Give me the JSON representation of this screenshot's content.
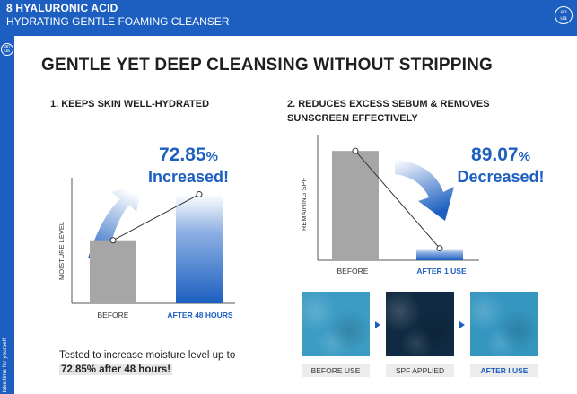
{
  "header": {
    "product_line": "8 HYALURONIC ACID",
    "product_name": "HYDRATING GENTLE FOAMING CLEANSER",
    "logo_top": "an",
    "logo_bottom": "ua"
  },
  "sidebar": {
    "logo_top": "an",
    "logo_bottom": "ua",
    "tagline": "take time for yourself"
  },
  "main_title": "GENTLE YET DEEP CLEANSING WITHOUT STRIPPING",
  "section1": {
    "title": "1. KEEPS SKIN WELL-HYDRATED",
    "y_label": "MOISTURE LEVEL",
    "stat_number": "72.85",
    "stat_unit": "%",
    "stat_word": "Increased!",
    "note_line1": "Tested to increase moisture level up to",
    "note_line2": "72.85% after 48 hours!"
  },
  "section2": {
    "title_line1": "2. REDUCES EXCESS SEBUM & REMOVES",
    "title_line2": "SUNSCREEN EFFECTIVELY",
    "y_label": "REMAINING SPF",
    "stat_number": "89.07",
    "stat_unit": "%",
    "stat_word": "Decreased!"
  },
  "chart_data": [
    {
      "type": "bar",
      "title": "1. KEEPS SKIN WELL-HYDRATED",
      "ylabel": "MOISTURE LEVEL",
      "categories": [
        "BEFORE",
        "AFTER 48 HOURS"
      ],
      "values": [
        100,
        172.85
      ],
      "ylim": [
        0,
        185
      ],
      "bar_colors": [
        "#a6a6a6",
        "#1c5fc0"
      ]
    },
    {
      "type": "bar",
      "title": "2. REDUCES EXCESS SEBUM & REMOVES SUNSCREEN EFFECTIVELY",
      "ylabel": "REMAINING SPF",
      "categories": [
        "BEFORE",
        "AFTER 1 USE"
      ],
      "values": [
        100,
        10.93
      ],
      "ylim": [
        0,
        110
      ],
      "bar_colors": [
        "#a6a6a6",
        "#1c5fc0"
      ]
    }
  ],
  "swatches": [
    {
      "label": "BEFORE USE",
      "color": "#3c9cc4"
    },
    {
      "label": "SPF APPLIED",
      "color": "#0f2a42"
    },
    {
      "label": "AFTER I USE",
      "color": "#3596c0"
    }
  ],
  "colors": {
    "brand": "#1c5fc0",
    "bar_before": "#a6a6a6"
  }
}
